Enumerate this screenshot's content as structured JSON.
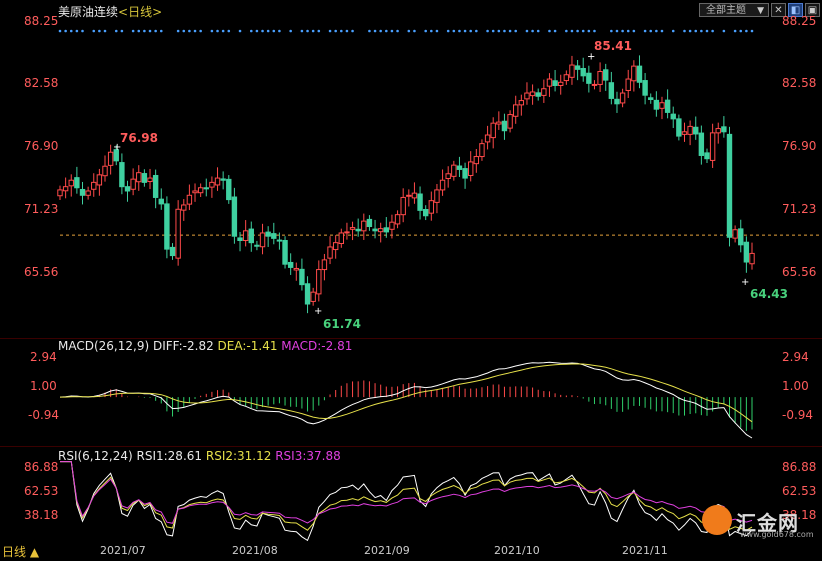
{
  "header": {
    "instrument": "美原油连续",
    "period": "<日线>",
    "theme_label": "全部主题",
    "icons": [
      "chevron-down-icon",
      "close-box-icon",
      "left-layout-icon",
      "panel-icon"
    ]
  },
  "price_axis": {
    "ticks": [
      "88.25",
      "82.58",
      "76.90",
      "71.23",
      "65.56"
    ],
    "right_ticks": [
      "88.25",
      "82.58",
      "76.90",
      "71.23",
      "65.56"
    ]
  },
  "annotations": {
    "high_left": "76.98",
    "high_top": "85.41",
    "low_mid": "61.74",
    "low_last": "64.43"
  },
  "macd": {
    "label": "MACD(26,12,9)",
    "diff_text": "DIFF:-2.82",
    "dea_text": "DEA:-1.41",
    "macd_text": "MACD:-2.81",
    "ticks": [
      "2.94",
      "1.00",
      "-0.94"
    ]
  },
  "rsi": {
    "label": "RSI(6,12,24)",
    "rsi1_text": "RSI1:28.61",
    "rsi2_text": "RSI2:31.12",
    "rsi3_text": "RSI3:37.88",
    "ticks": [
      "86.88",
      "62.53",
      "38.18"
    ]
  },
  "x_axis": {
    "months": [
      "2021/07",
      "2021/08",
      "2021/09",
      "2021/10",
      "2021/11"
    ]
  },
  "bottom_tab": "日线 ▲",
  "watermark": {
    "name": "汇金网",
    "url": "www.gold678.com"
  },
  "chart_data": {
    "type": "candlestick",
    "price_range": [
      61.0,
      88.5
    ],
    "last_price_line": 68.7,
    "closes": [
      72.9,
      73.2,
      73.8,
      73.1,
      72.4,
      72.8,
      73.6,
      74.3,
      75.1,
      76.4,
      75.6,
      73.2,
      72.8,
      73.9,
      74.5,
      73.6,
      74.0,
      72.2,
      71.6,
      67.4,
      66.8,
      71.1,
      71.5,
      72.4,
      72.8,
      73.1,
      73.0,
      73.6,
      74.0,
      73.8,
      72.0,
      68.6,
      68.2,
      69.1,
      68.0,
      67.7,
      68.9,
      68.6,
      68.4,
      68.2,
      66.0,
      65.7,
      65.6,
      64.1,
      62.3,
      63.4,
      65.5,
      66.4,
      67.6,
      68.0,
      68.9,
      69.0,
      69.4,
      69.1,
      70.0,
      69.5,
      69.1,
      69.3,
      69.0,
      69.9,
      70.6,
      72.2,
      72.4,
      72.6,
      71.0,
      70.5,
      71.9,
      72.9,
      73.8,
      74.4,
      75.2,
      74.8,
      74.0,
      75.5,
      76.0,
      77.2,
      78.0,
      79.1,
      79.2,
      78.4,
      79.9,
      80.8,
      81.2,
      81.9,
      82.0,
      81.6,
      82.3,
      83.2,
      82.6,
      82.9,
      83.6,
      84.5,
      84.1,
      83.5,
      82.8,
      82.7,
      83.9,
      83.1,
      81.4,
      80.9,
      81.9,
      83.2,
      84.4,
      82.9,
      81.7,
      81.3,
      80.4,
      81.0,
      80.1,
      79.5,
      77.9,
      78.3,
      78.8,
      78.1,
      76.1,
      75.8,
      78.2,
      78.6,
      78.3,
      68.5,
      69.2,
      67.8,
      66.2,
      67.0
    ]
  }
}
